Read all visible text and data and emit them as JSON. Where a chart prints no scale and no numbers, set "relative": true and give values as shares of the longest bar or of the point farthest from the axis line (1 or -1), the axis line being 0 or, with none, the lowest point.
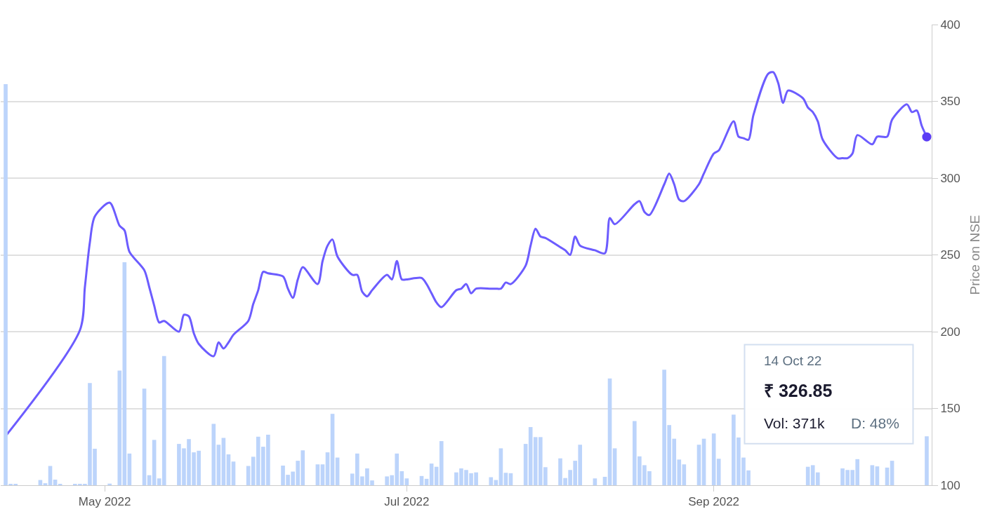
{
  "chart_data": [
    {
      "type": "line",
      "ylabel": "Price on NSE",
      "x": [
        "2022-04-11",
        "2022-04-26",
        "2022-04-27",
        "2022-04-28",
        "2022-04-29",
        "2022-05-02",
        "2022-05-04",
        "2022-05-05",
        "2022-05-06",
        "2022-05-09",
        "2022-05-10",
        "2022-05-11",
        "2022-05-12",
        "2022-05-13",
        "2022-05-16",
        "2022-05-17",
        "2022-05-18",
        "2022-05-19",
        "2022-05-20",
        "2022-05-23",
        "2022-05-24",
        "2022-05-25",
        "2022-05-26",
        "2022-05-27",
        "2022-05-30",
        "2022-05-31",
        "2022-06-01",
        "2022-06-02",
        "2022-06-03",
        "2022-06-06",
        "2022-06-07",
        "2022-06-08",
        "2022-06-09",
        "2022-06-10",
        "2022-06-13",
        "2022-06-14",
        "2022-06-15",
        "2022-06-16",
        "2022-06-17",
        "2022-06-20",
        "2022-06-21",
        "2022-06-22",
        "2022-06-23",
        "2022-06-24",
        "2022-06-27",
        "2022-06-28",
        "2022-06-29",
        "2022-06-30",
        "2022-07-01",
        "2022-07-04",
        "2022-07-05",
        "2022-07-06",
        "2022-07-07",
        "2022-07-08",
        "2022-07-11",
        "2022-07-12",
        "2022-07-13",
        "2022-07-14",
        "2022-07-15",
        "2022-07-18",
        "2022-07-19",
        "2022-07-20",
        "2022-07-21",
        "2022-07-22",
        "2022-07-25",
        "2022-07-26",
        "2022-07-27",
        "2022-07-28",
        "2022-07-29",
        "2022-08-01",
        "2022-08-02",
        "2022-08-03",
        "2022-08-04",
        "2022-08-05",
        "2022-08-08",
        "2022-08-10",
        "2022-08-11",
        "2022-08-12",
        "2022-08-16",
        "2022-08-17",
        "2022-08-18",
        "2022-08-19",
        "2022-08-22",
        "2022-08-23",
        "2022-08-24",
        "2022-08-25",
        "2022-08-26",
        "2022-08-29",
        "2022-08-30",
        "2022-09-01",
        "2022-09-02",
        "2022-09-05",
        "2022-09-06",
        "2022-09-07",
        "2022-09-08",
        "2022-09-09",
        "2022-09-12",
        "2022-09-13",
        "2022-09-14",
        "2022-09-15",
        "2022-09-16",
        "2022-09-19",
        "2022-09-20",
        "2022-09-21",
        "2022-09-22",
        "2022-09-23",
        "2022-09-26",
        "2022-09-27",
        "2022-09-28",
        "2022-09-29",
        "2022-09-30",
        "2022-10-03",
        "2022-10-04",
        "2022-10-06",
        "2022-10-07",
        "2022-10-10",
        "2022-10-11",
        "2022-10-12",
        "2022-10-13",
        "2022-10-14"
      ],
      "xlim": [
        "2022-04-10",
        "2022-10-15"
      ],
      "xticks": [
        {
          "value": "2022-05-01",
          "label": "May 2022"
        },
        {
          "value": "2022-07-01",
          "label": "Jul 2022"
        },
        {
          "value": "2022-09-01",
          "label": "Sep 2022"
        }
      ],
      "ylim": [
        100,
        400
      ],
      "yticks": [
        100,
        150,
        200,
        250,
        300,
        350,
        400
      ],
      "grid": "y",
      "marker": "none",
      "line_style": "solid",
      "annotations": [
        "14 Oct 22",
        "₹ 326.85",
        "Vol: 371k",
        "D: 48%"
      ],
      "series": [
        {
          "color": "#6c5cff",
          "values": [
            132,
            201,
            229,
            258,
            275,
            284,
            269,
            266,
            252,
            240,
            229,
            217,
            206,
            207,
            200,
            211,
            210,
            199,
            192,
            184,
            193,
            189,
            193,
            198,
            207,
            218,
            227,
            239,
            238,
            236,
            228,
            222,
            234,
            242,
            231,
            246,
            256,
            260,
            249,
            237,
            237,
            226,
            223,
            227,
            237,
            234,
            246,
            234,
            234,
            235,
            231,
            225,
            219,
            216,
            227,
            228,
            231,
            225,
            228,
            228,
            228,
            228,
            232,
            231,
            243,
            256,
            267,
            262,
            261,
            255,
            253,
            250,
            262,
            256,
            253,
            251,
            274,
            270,
            283,
            285,
            278,
            276,
            296,
            303,
            296,
            286,
            285,
            296,
            303,
            316,
            318,
            337,
            327,
            326,
            325,
            341,
            368,
            369,
            362,
            349,
            357,
            352,
            346,
            343,
            337,
            325,
            313,
            313,
            313,
            316,
            328,
            322,
            327,
            327,
            338,
            348,
            343,
            344,
            334,
            326.85
          ]
        },
        {
          "type": "scatter",
          "marker": "circle",
          "color": "#5b3cf5",
          "x": [
            "2022-10-14"
          ],
          "values": [
            326.85
          ]
        }
      ]
    },
    {
      "type": "bar",
      "relative": true,
      "tick_labels": false,
      "color": "#bcd4fb",
      "xlim": [
        "2022-04-10",
        "2022-10-15"
      ],
      "x": [
        "2022-04-11",
        "2022-04-12",
        "2022-04-13",
        "2022-04-18",
        "2022-04-19",
        "2022-04-20",
        "2022-04-21",
        "2022-04-22",
        "2022-04-25",
        "2022-04-26",
        "2022-04-27",
        "2022-04-28",
        "2022-04-29",
        "2022-05-02",
        "2022-05-04",
        "2022-05-05",
        "2022-05-06",
        "2022-05-09",
        "2022-05-10",
        "2022-05-11",
        "2022-05-12",
        "2022-05-13",
        "2022-05-16",
        "2022-05-17",
        "2022-05-18",
        "2022-05-19",
        "2022-05-20",
        "2022-05-23",
        "2022-05-24",
        "2022-05-25",
        "2022-05-26",
        "2022-05-27",
        "2022-05-30",
        "2022-05-31",
        "2022-06-01",
        "2022-06-02",
        "2022-06-03",
        "2022-06-06",
        "2022-06-07",
        "2022-06-08",
        "2022-06-09",
        "2022-06-10",
        "2022-06-13",
        "2022-06-14",
        "2022-06-15",
        "2022-06-16",
        "2022-06-17",
        "2022-06-20",
        "2022-06-21",
        "2022-06-22",
        "2022-06-23",
        "2022-06-24",
        "2022-06-27",
        "2022-06-28",
        "2022-06-29",
        "2022-06-30",
        "2022-07-01",
        "2022-07-04",
        "2022-07-05",
        "2022-07-06",
        "2022-07-07",
        "2022-07-08",
        "2022-07-11",
        "2022-07-12",
        "2022-07-13",
        "2022-07-14",
        "2022-07-15",
        "2022-07-18",
        "2022-07-19",
        "2022-07-20",
        "2022-07-21",
        "2022-07-22",
        "2022-07-25",
        "2022-07-26",
        "2022-07-27",
        "2022-07-28",
        "2022-07-29",
        "2022-08-01",
        "2022-08-02",
        "2022-08-03",
        "2022-08-04",
        "2022-08-05",
        "2022-08-08",
        "2022-08-10",
        "2022-08-11",
        "2022-08-12",
        "2022-08-16",
        "2022-08-17",
        "2022-08-18",
        "2022-08-19",
        "2022-08-22",
        "2022-08-23",
        "2022-08-24",
        "2022-08-25",
        "2022-08-26",
        "2022-08-29",
        "2022-08-30",
        "2022-09-01",
        "2022-09-02",
        "2022-09-05",
        "2022-09-06",
        "2022-09-07",
        "2022-09-08",
        "2022-09-09",
        "2022-09-12",
        "2022-09-13",
        "2022-09-14",
        "2022-09-15",
        "2022-09-16",
        "2022-09-19",
        "2022-09-20",
        "2022-09-21",
        "2022-09-22",
        "2022-09-23",
        "2022-09-26",
        "2022-09-27",
        "2022-09-28",
        "2022-09-29",
        "2022-09-30",
        "2022-10-03",
        "2022-10-04",
        "2022-10-06",
        "2022-10-07",
        "2022-10-10",
        "2022-10-11",
        "2022-10-12",
        "2022-10-13",
        "2022-10-14"
      ],
      "values": [
        1.0,
        0.003,
        0.003,
        0.013,
        0.005,
        0.048,
        0.014,
        0.003,
        0.003,
        0.002,
        0.002,
        0.255,
        0.091,
        0.004,
        0.286,
        0.556,
        0.079,
        0.241,
        0.025,
        0.113,
        0.017,
        0.322,
        0.103,
        0.092,
        0.115,
        0.082,
        0.086,
        0.153,
        0.101,
        0.118,
        0.077,
        0.059,
        0.048,
        0.071,
        0.121,
        0.096,
        0.126,
        0.049,
        0.026,
        0.034,
        0.061,
        0.087,
        0.052,
        0.052,
        0.082,
        0.178,
        0.069,
        0.029,
        0.079,
        0.022,
        0.042,
        0.012,
        0.022,
        0.025,
        0.079,
        0.035,
        0.017,
        0.023,
        0.016,
        0.054,
        0.046,
        0.11,
        0.032,
        0.042,
        0.038,
        0.03,
        0.032,
        0.02,
        0.013,
        0.092,
        0.031,
        0.03,
        0.103,
        0.145,
        0.12,
        0.12,
        0.045,
        0.067,
        0.018,
        0.038,
        0.061,
        0.101,
        0.017,
        0.021,
        0.266,
        0.092,
        0.16,
        0.072,
        0.05,
        0.035,
        0.288,
        0.15,
        0.116,
        0.064,
        0.052,
        0.101,
        0.116,
        0.129,
        0.066,
        0.176,
        0.119,
        0.069,
        0.037,
        null,
        null,
        null,
        null,
        null,
        null,
        null,
        0.046,
        0.05,
        0.032,
        null,
        null,
        0.042,
        0.038,
        0.038,
        0.065,
        0.05,
        0.047,
        0.044,
        0.061,
        null,
        null,
        null,
        null,
        0.122
      ]
    }
  ]
}
